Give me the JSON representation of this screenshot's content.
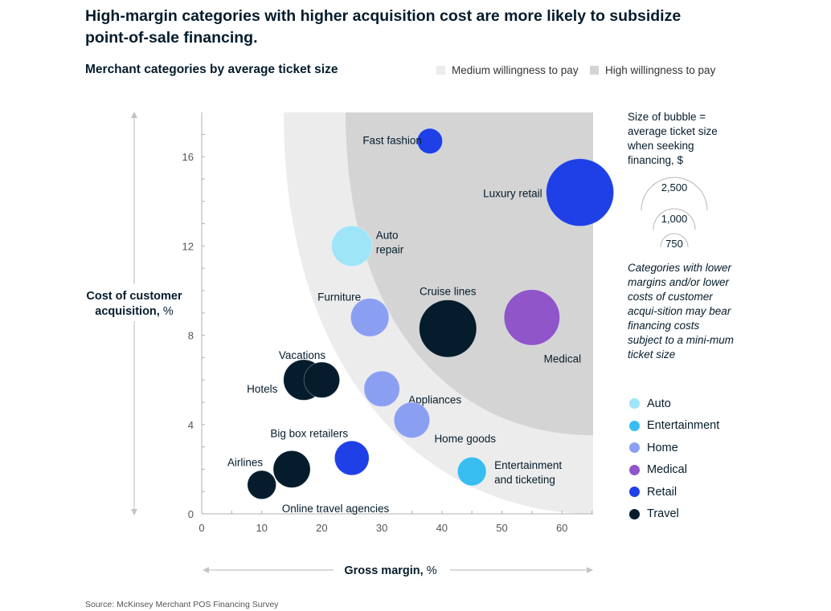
{
  "title": "High-margin categories with higher acquisition cost are more likely to subsidize point-of-sale financing.",
  "subtitle": "Merchant categories by average ticket size",
  "background_legend": [
    {
      "label": "Medium willingness to pay",
      "color": "#ececec"
    },
    {
      "label": "High willingness to pay",
      "color": "#d4d4d4"
    }
  ],
  "size_legend": {
    "title": "Size of bubble = average ticket size when seeking financing, $",
    "values": [
      2500,
      1000,
      750
    ],
    "labels": [
      "2,500",
      "1,000",
      "750"
    ]
  },
  "note": "Categories with lower margins and/or lower costs of customer acqui-sition may bear financing costs subject to a mini-mum ticket size",
  "category_legend": [
    {
      "label": "Auto",
      "color": "#9ee5f8"
    },
    {
      "label": "Entertainment",
      "color": "#38bdf0"
    },
    {
      "label": "Home",
      "color": "#8b9ff2"
    },
    {
      "label": "Medical",
      "color": "#8f55c9"
    },
    {
      "label": "Retail",
      "color": "#1f40e6"
    },
    {
      "label": "Travel",
      "color": "#051c2c"
    }
  ],
  "source": "Source: McKinsey Merchant POS Financing Survey",
  "chart_data": {
    "type": "scatter",
    "xlabel": "Gross margin,",
    "xlabel_unit": "%",
    "ylabel": "Cost of customer acquisition,",
    "ylabel_unit": "%",
    "xlim": [
      0,
      65
    ],
    "ylim": [
      0,
      18
    ],
    "xticks": [
      0,
      10,
      20,
      30,
      40,
      50,
      60
    ],
    "yticks": [
      0,
      4,
      8,
      12,
      16
    ],
    "points": [
      {
        "name": "Fast fashion",
        "x": 38,
        "y": 16.7,
        "size": 350,
        "category": "Retail"
      },
      {
        "name": "Luxury retail",
        "x": 63,
        "y": 14.4,
        "size": 2500,
        "category": "Retail"
      },
      {
        "name": "Auto repair",
        "x": 25,
        "y": 12.0,
        "size": 900,
        "category": "Auto"
      },
      {
        "name": "Furniture",
        "x": 28,
        "y": 8.8,
        "size": 800,
        "category": "Home"
      },
      {
        "name": "Cruise lines",
        "x": 41,
        "y": 8.3,
        "size": 1800,
        "category": "Travel"
      },
      {
        "name": "Medical",
        "x": 55,
        "y": 8.8,
        "size": 1700,
        "category": "Medical"
      },
      {
        "name": "Vacations",
        "x": 17,
        "y": 6.0,
        "size": 900,
        "category": "Travel"
      },
      {
        "name": "Hotels",
        "x": 20,
        "y": 6.0,
        "size": 700,
        "category": "Travel"
      },
      {
        "name": "Appliances",
        "x": 30,
        "y": 5.6,
        "size": 700,
        "category": "Home"
      },
      {
        "name": "Home goods",
        "x": 35,
        "y": 4.2,
        "size": 700,
        "category": "Home"
      },
      {
        "name": "Big box retailers",
        "x": 25,
        "y": 2.5,
        "size": 650,
        "category": "Retail"
      },
      {
        "name": "Entertainment and ticketing",
        "x": 45,
        "y": 1.9,
        "size": 450,
        "category": "Entertainment"
      },
      {
        "name": "Airlines",
        "x": 15,
        "y": 2.0,
        "size": 750,
        "category": "Travel"
      },
      {
        "name": "Online travel agencies",
        "x": 10,
        "y": 1.3,
        "size": 450,
        "category": "Travel"
      }
    ]
  }
}
